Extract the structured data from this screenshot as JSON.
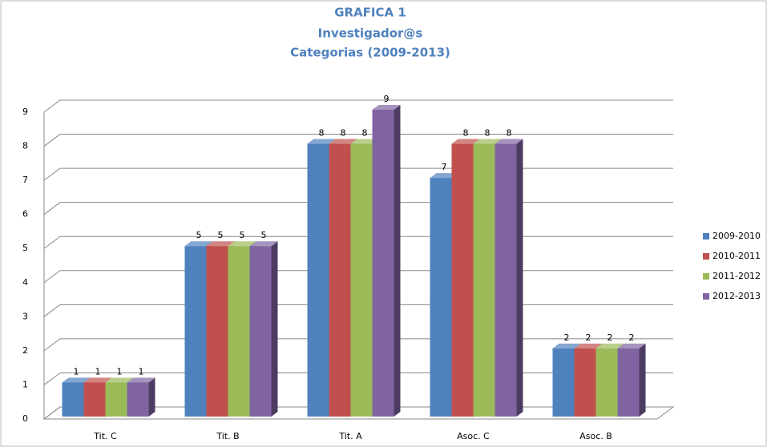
{
  "chart_data": {
    "type": "bar3d",
    "title": "GRAFICA 1",
    "subtitle": [
      "Investigador@s",
      "Categorias (2009-2013)"
    ],
    "categories": [
      "Tit. C",
      "Tit. B",
      "Tit. A",
      "Asoc. C",
      "Asoc. B"
    ],
    "series": [
      {
        "name": "2009-2010",
        "color": "#4f81bd",
        "values": [
          1,
          5,
          8,
          7,
          2
        ]
      },
      {
        "name": "2010-2011",
        "color": "#c0504d",
        "values": [
          1,
          5,
          8,
          8,
          2
        ]
      },
      {
        "name": "2011-2012",
        "color": "#9bbb59",
        "values": [
          1,
          5,
          8,
          8,
          2
        ]
      },
      {
        "name": "2012-2013",
        "color": "#8064a2",
        "values": [
          1,
          5,
          9,
          8,
          2
        ]
      }
    ],
    "ylim": [
      0,
      9
    ],
    "yticks": [
      0,
      1,
      2,
      3,
      4,
      5,
      6,
      7,
      8,
      9
    ],
    "grid": true,
    "legend": "right"
  }
}
